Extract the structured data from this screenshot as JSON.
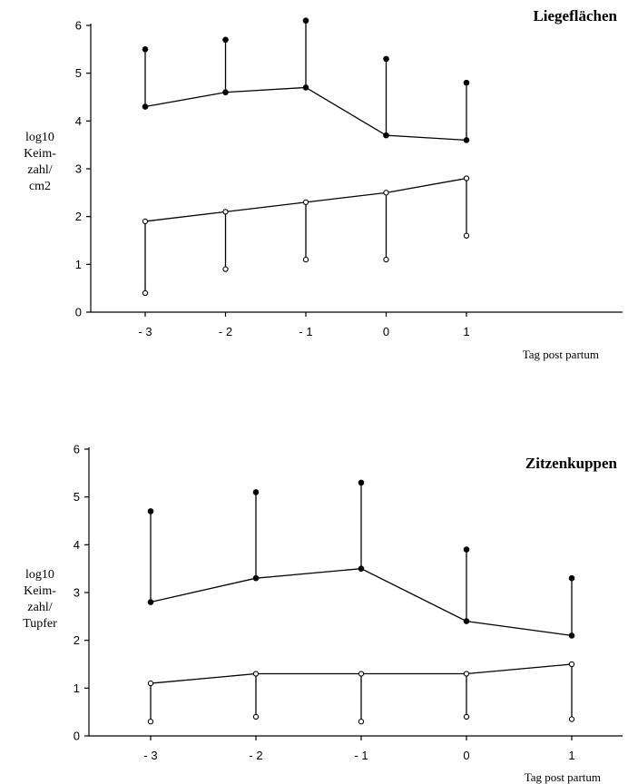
{
  "chart_data": [
    {
      "type": "line",
      "title": "Liegeflächen",
      "ylabel_lines": [
        "log10",
        "Keim-",
        "zahl/",
        "cm2"
      ],
      "xlabel": "Tag post partum",
      "categories": [
        "- 3",
        "- 2",
        "- 1",
        "0",
        "1"
      ],
      "yticks": [
        "0",
        "1",
        "2",
        "3",
        "4",
        "5",
        "6"
      ],
      "ylim": [
        0,
        6
      ],
      "grid": false,
      "series": [
        {
          "marker": "filled",
          "values": [
            4.3,
            4.6,
            4.7,
            3.7,
            3.6
          ],
          "upper": [
            5.5,
            5.7,
            6.1,
            5.3,
            4.8
          ]
        },
        {
          "marker": "open",
          "values": [
            1.9,
            2.1,
            2.3,
            2.5,
            2.8
          ],
          "lower": [
            0.4,
            0.9,
            1.1,
            1.1,
            1.6
          ]
        }
      ]
    },
    {
      "type": "line",
      "title": "Zitzenkuppen",
      "ylabel_lines": [
        "log10",
        "Keim-",
        "zahl/",
        "Tupfer"
      ],
      "xlabel": "Tag post partum",
      "categories": [
        "- 3",
        "- 2",
        "- 1",
        "0",
        "1"
      ],
      "yticks": [
        "0",
        "1",
        "2",
        "3",
        "4",
        "5",
        "6"
      ],
      "ylim": [
        0,
        6
      ],
      "grid": false,
      "series": [
        {
          "marker": "filled",
          "values": [
            2.8,
            3.3,
            3.5,
            2.4,
            2.1
          ],
          "upper": [
            4.7,
            5.1,
            5.3,
            3.9,
            3.3
          ]
        },
        {
          "marker": "open",
          "values": [
            1.1,
            1.3,
            1.3,
            1.3,
            1.5
          ],
          "lower": [
            0.3,
            0.4,
            0.3,
            0.4,
            0.35
          ]
        }
      ]
    }
  ]
}
